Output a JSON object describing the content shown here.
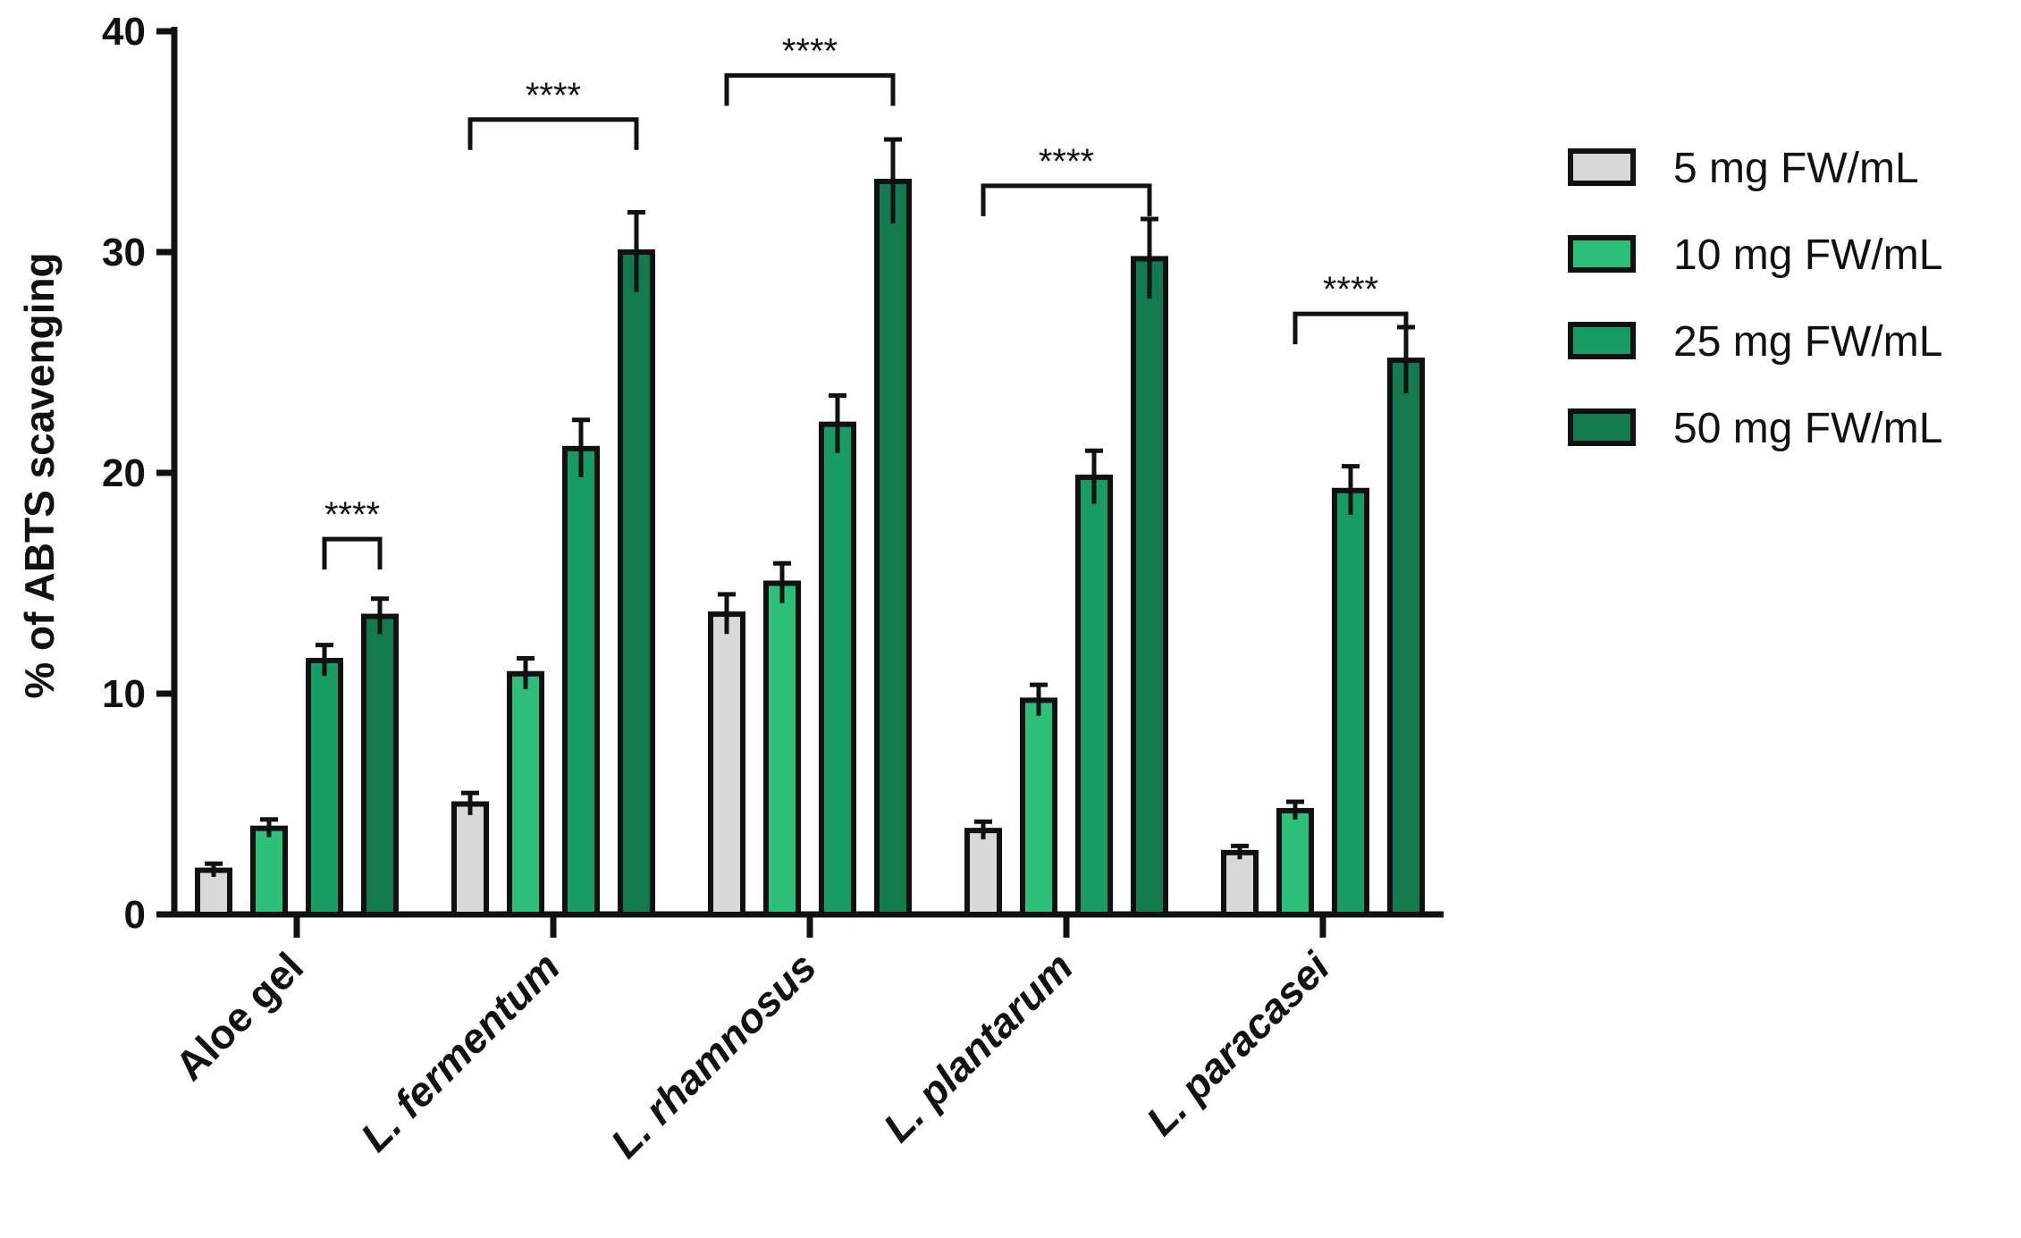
{
  "chart_data": {
    "type": "bar",
    "title": "",
    "xlabel": "",
    "ylabel": "% of ABTS scavenging",
    "ylim": [
      0,
      40
    ],
    "yticks": [
      0,
      10,
      20,
      30,
      40
    ],
    "grid": false,
    "legend_position": "right",
    "categories": [
      {
        "prefix": "Aloe gel",
        "species": ""
      },
      {
        "prefix": "L. ",
        "species": "fermentum"
      },
      {
        "prefix": "L. ",
        "species": "rhamnosus"
      },
      {
        "prefix": "L. ",
        "species": "plantarum"
      },
      {
        "prefix": "L. ",
        "species": "paracasei"
      }
    ],
    "series": [
      {
        "name": "5 mg FW/mL",
        "color": "#d9d9d9",
        "values": [
          2.0,
          5.0,
          13.6,
          3.8,
          2.8
        ],
        "errors": [
          0.3,
          0.5,
          0.9,
          0.4,
          0.3
        ]
      },
      {
        "name": "10 mg FW/mL",
        "color": "#2ebf7a",
        "values": [
          3.9,
          10.9,
          15.0,
          9.7,
          4.7
        ],
        "errors": [
          0.4,
          0.7,
          0.9,
          0.7,
          0.4
        ]
      },
      {
        "name": "25 mg FW/mL",
        "color": "#199c63",
        "values": [
          11.5,
          21.1,
          22.2,
          19.8,
          19.2
        ],
        "errors": [
          0.7,
          1.3,
          1.3,
          1.2,
          1.1
        ]
      },
      {
        "name": "50 mg FW/mL",
        "color": "#137a50",
        "values": [
          13.5,
          30.0,
          33.2,
          29.7,
          25.1
        ],
        "errors": [
          0.8,
          1.8,
          1.9,
          1.8,
          1.5
        ]
      }
    ],
    "significance": [
      {
        "category": 0,
        "from_series": 2,
        "to_series": 3,
        "label": "****",
        "bracket_y": 17.0
      },
      {
        "category": 1,
        "from_series": 0,
        "to_series": 3,
        "label": "****",
        "bracket_y": 36.0
      },
      {
        "category": 2,
        "from_series": 0,
        "to_series": 3,
        "label": "****",
        "bracket_y": 38.0
      },
      {
        "category": 3,
        "from_series": 0,
        "to_series": 3,
        "label": "****",
        "bracket_y": 33.0
      },
      {
        "category": 4,
        "from_series": 1,
        "to_series": 3,
        "label": "****",
        "bracket_y": 27.2
      }
    ]
  }
}
